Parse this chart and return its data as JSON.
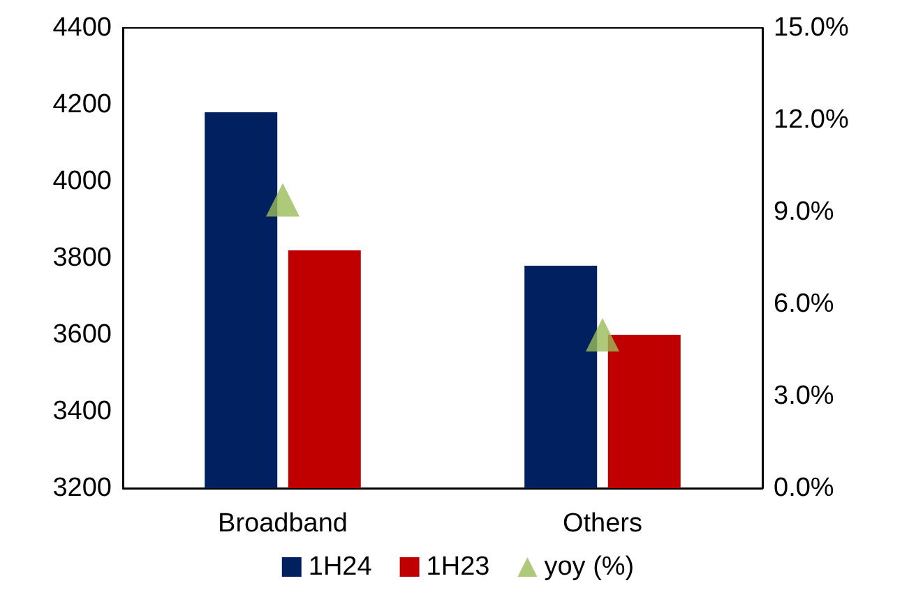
{
  "chart_data": {
    "type": "bar",
    "categories": [
      "Broadband",
      "Others"
    ],
    "series": [
      {
        "name": "1H24",
        "color": "#002060",
        "values": [
          4180,
          3780
        ]
      },
      {
        "name": "1H23",
        "color": "#c00000",
        "values": [
          3820,
          3600
        ]
      },
      {
        "name": "yoy (%)",
        "type": "scatter",
        "axis": "y2",
        "color": "#9bbb59",
        "x": [
          "Broadband",
          "Others"
        ],
        "values": [
          9.4,
          5.0
        ]
      }
    ],
    "ylim": [
      3200,
      4400
    ],
    "yticks": [
      3200,
      3400,
      3600,
      3800,
      4000,
      4200,
      4400
    ],
    "y2lim": [
      0,
      15
    ],
    "y2ticks": [
      {
        "value": 0,
        "label": "0.0%"
      },
      {
        "value": 3,
        "label": "3.0%"
      },
      {
        "value": 6,
        "label": "6.0%"
      },
      {
        "value": 9,
        "label": "9.0%"
      },
      {
        "value": 12,
        "label": "12.0%"
      },
      {
        "value": 15,
        "label": "15.0%"
      }
    ],
    "marker": "triangle",
    "grid": false,
    "legend": "bottom"
  }
}
